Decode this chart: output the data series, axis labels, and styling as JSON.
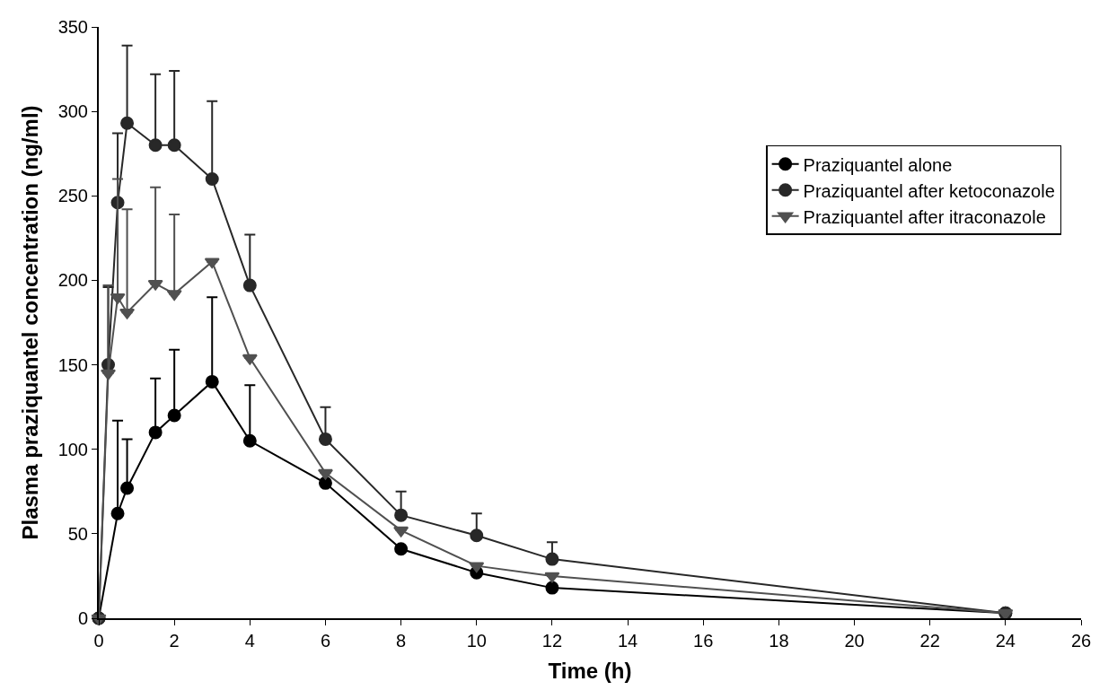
{
  "chart_data": {
    "type": "line",
    "xlabel": "Time (h)",
    "ylabel": "Plasma praziquantel concentration (ng/ml)",
    "xlim": [
      0,
      26
    ],
    "xticks": [
      0,
      2,
      4,
      6,
      8,
      10,
      12,
      14,
      16,
      18,
      20,
      22,
      24,
      26
    ],
    "ylim": [
      0,
      350
    ],
    "yticks": [
      0,
      50,
      100,
      150,
      200,
      250,
      300,
      350
    ],
    "legend": "top right",
    "line_style": "solid",
    "series": [
      {
        "name": "Praziquantel alone",
        "color": "#000000",
        "marker": "circle",
        "x": [
          0,
          0.5,
          0.75,
          1.5,
          2,
          3,
          4,
          6,
          8,
          10,
          12,
          24
        ],
        "values": [
          0,
          62,
          77,
          110,
          120,
          140,
          105,
          80,
          41,
          27,
          18,
          3
        ],
        "errors": [
          null,
          [
            62,
            117
          ],
          [
            77,
            106
          ],
          [
            110,
            142
          ],
          [
            120,
            159
          ],
          [
            140,
            190
          ],
          [
            105,
            138
          ],
          null,
          null,
          null,
          null,
          null
        ]
      },
      {
        "name": "Praziquantel after ketoconazole",
        "color": "#282828",
        "marker": "circle",
        "x": [
          0,
          0.25,
          0.5,
          0.75,
          1.5,
          2,
          3,
          4,
          6,
          8,
          10,
          12,
          24
        ],
        "values": [
          0,
          150,
          246,
          293,
          280,
          280,
          260,
          197,
          106,
          61,
          49,
          35,
          3
        ],
        "errors": [
          null,
          [
            150,
            196
          ],
          [
            246,
            287
          ],
          [
            293,
            339
          ],
          [
            280,
            322
          ],
          [
            280,
            324
          ],
          [
            260,
            306
          ],
          [
            197,
            227
          ],
          [
            106,
            125
          ],
          [
            61,
            75
          ],
          [
            49,
            62
          ],
          [
            35,
            45
          ],
          null
        ]
      },
      {
        "name": "Praziquantel after itraconazole",
        "color": "#505050",
        "marker": "triangle",
        "x": [
          0,
          0.25,
          0.5,
          0.75,
          1.5,
          2,
          3,
          4,
          6,
          8,
          10,
          12,
          24
        ],
        "values": [
          0,
          145,
          190,
          181,
          198,
          192,
          211,
          154,
          86,
          52,
          31,
          25,
          3
        ],
        "errors": [
          null,
          [
            145,
            197
          ],
          [
            190,
            260
          ],
          [
            181,
            242
          ],
          [
            198,
            255
          ],
          [
            192,
            239
          ],
          null,
          null,
          null,
          null,
          null,
          null,
          null
        ]
      }
    ]
  }
}
